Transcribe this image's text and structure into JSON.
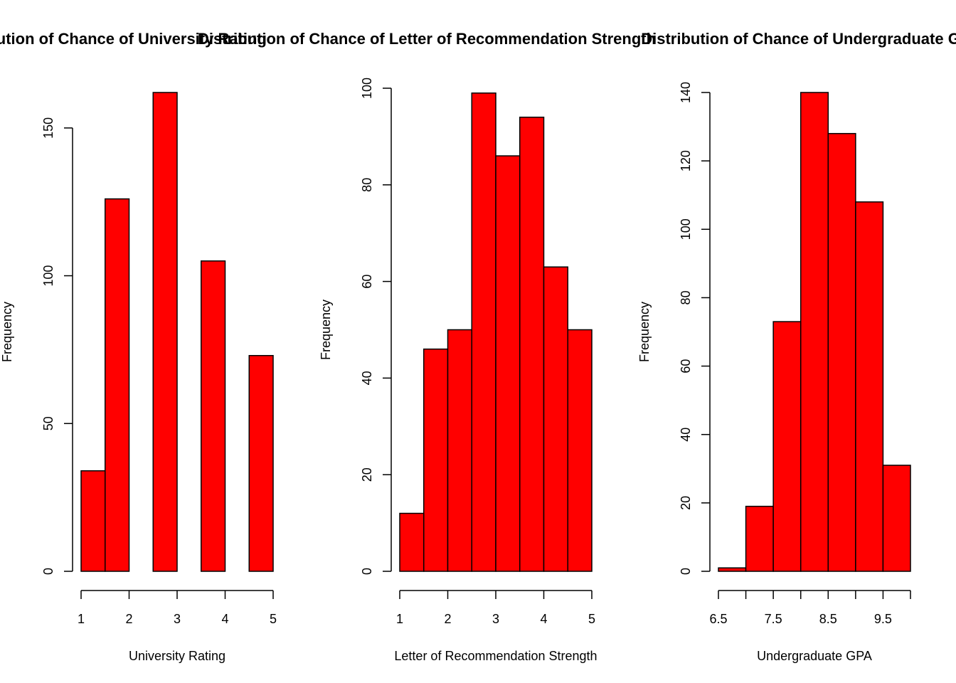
{
  "colors": {
    "bar_fill": "#ff0000",
    "bar_stroke": "#000000",
    "background": "#ffffff"
  },
  "chart_data": [
    {
      "type": "bar",
      "title": "Distribution of Chance of University Rating",
      "xlabel": "University Rating",
      "ylabel": "Frequency",
      "bins": [
        [
          1,
          1.5
        ],
        [
          1.5,
          2
        ],
        [
          2,
          2.5
        ],
        [
          2.5,
          3
        ],
        [
          3,
          3.5
        ],
        [
          3.5,
          4
        ],
        [
          4,
          4.5
        ],
        [
          4.5,
          5
        ]
      ],
      "values": [
        34,
        126,
        0,
        162,
        0,
        105,
        0,
        73
      ],
      "xlim": [
        1,
        5
      ],
      "ylim": [
        0,
        162
      ],
      "xticks": [
        1,
        2,
        3,
        4,
        5
      ],
      "xtick_labels": [
        "1",
        "2",
        "3",
        "4",
        "5"
      ],
      "yticks": [
        0,
        50,
        100,
        150
      ],
      "ytick_labels": [
        "0",
        "50",
        "100",
        "150"
      ],
      "grid": false
    },
    {
      "type": "bar",
      "title": "Distribution of Chance of Letter of Recommendation Strength",
      "xlabel": "Letter of Recommendation Strength",
      "ylabel": "Frequency",
      "bins": [
        [
          1,
          1.5
        ],
        [
          1.5,
          2
        ],
        [
          2,
          2.5
        ],
        [
          2.5,
          3
        ],
        [
          3,
          3.5
        ],
        [
          3.5,
          4
        ],
        [
          4,
          4.5
        ],
        [
          4.5,
          5
        ]
      ],
      "values": [
        12,
        46,
        50,
        99,
        86,
        94,
        63,
        50
      ],
      "xlim": [
        1,
        5
      ],
      "ylim": [
        0,
        100
      ],
      "xticks": [
        1,
        2,
        3,
        4,
        5
      ],
      "xtick_labels": [
        "1",
        "2",
        "3",
        "4",
        "5"
      ],
      "yticks": [
        0,
        20,
        40,
        60,
        80,
        100
      ],
      "ytick_labels": [
        "0",
        "20",
        "40",
        "60",
        "80",
        "100"
      ],
      "grid": false
    },
    {
      "type": "bar",
      "title": "Distribution of Chance of Undergraduate GPA",
      "xlabel": "Undergraduate GPA",
      "ylabel": "Frequency",
      "bins": [
        [
          6.5,
          7
        ],
        [
          7,
          7.5
        ],
        [
          7.5,
          8
        ],
        [
          8,
          8.5
        ],
        [
          8.5,
          9
        ],
        [
          9,
          9.5
        ],
        [
          9.5,
          10
        ]
      ],
      "values": [
        1,
        19,
        73,
        140,
        128,
        108,
        31
      ],
      "xlim": [
        6.5,
        10
      ],
      "ylim": [
        0,
        140
      ],
      "xticks": [
        6.5,
        7,
        7.5,
        8,
        8.5,
        9,
        9.5,
        10
      ],
      "xtick_labels": [
        "6.5",
        "",
        "7.5",
        "",
        "8.5",
        "",
        "9.5",
        ""
      ],
      "yticks": [
        0,
        20,
        40,
        60,
        80,
        100,
        120,
        140
      ],
      "ytick_labels": [
        "0",
        "20",
        "40",
        "60",
        "80",
        "100",
        "120",
        "140"
      ],
      "grid": false
    }
  ]
}
